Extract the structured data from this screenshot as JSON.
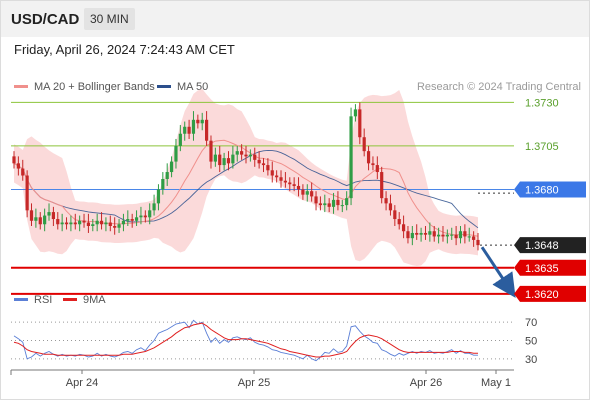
{
  "header": {
    "symbol": "USD/CAD",
    "interval": "30 MIN",
    "datetime": "Friday, April 26, 2024 7:24:43 AM CET"
  },
  "legend_main": [
    {
      "label": "MA 20 + Bollinger Bands",
      "color": "#f0908c"
    },
    {
      "label": "MA 50",
      "color": "#2c4f8c"
    }
  ],
  "research": "Research © 2024 Trading Central",
  "legend_rsi": [
    {
      "label": "RSI",
      "color": "#5b7fd6"
    },
    {
      "label": "9MA",
      "color": "#e02020"
    }
  ],
  "colors": {
    "up_candle": "#2f9d45",
    "down_candle": "#c62828",
    "band_fill": "#fbd6d6",
    "resistance": "#8cc43a",
    "support": "#e00000",
    "pivot": "#4a86e8",
    "last_price": "#222222",
    "arrow": "#2b5d9e"
  },
  "chart_data": {
    "type": "candlestick",
    "x_ticks": [
      "Apr 24",
      "Apr 25",
      "Apr 26",
      "May 1"
    ],
    "y_range": [
      1.3605,
      1.374
    ],
    "levels": [
      {
        "value": 1.373,
        "label": "1.3730",
        "kind": "resistance"
      },
      {
        "value": 1.3705,
        "label": "1.3705",
        "kind": "resistance"
      },
      {
        "value": 1.368,
        "label": "1.3680",
        "kind": "pivot"
      },
      {
        "value": 1.3648,
        "label": "1.3648",
        "kind": "last"
      },
      {
        "value": 1.3635,
        "label": "1.3635",
        "kind": "support"
      },
      {
        "value": 1.362,
        "label": "1.3620",
        "kind": "support"
      }
    ],
    "forecast_arrow": {
      "from": 1.3648,
      "to": 1.362
    },
    "close_path": [
      1.3695,
      1.3692,
      1.3688,
      1.3668,
      1.3662,
      1.3664,
      1.366,
      1.3665,
      1.3667,
      1.3663,
      1.366,
      1.3661,
      1.366,
      1.3661,
      1.366,
      1.3662,
      1.3661,
      1.3659,
      1.366,
      1.3662,
      1.366,
      1.3661,
      1.3659,
      1.3658,
      1.366,
      1.3662,
      1.3663,
      1.3662,
      1.3664,
      1.3665,
      1.3664,
      1.3668,
      1.3672,
      1.368,
      1.3686,
      1.369,
      1.3696,
      1.3705,
      1.3712,
      1.3716,
      1.3712,
      1.372,
      1.3718,
      1.372,
      1.3708,
      1.3696,
      1.37,
      1.3694,
      1.3698,
      1.3695,
      1.37,
      1.3702,
      1.37,
      1.3699,
      1.37,
      1.3697,
      1.3695,
      1.3694,
      1.3691,
      1.3688,
      1.3687,
      1.3685,
      1.3684,
      1.3683,
      1.3682,
      1.368,
      1.3677,
      1.3679,
      1.3676,
      1.3672,
      1.3671,
      1.3672,
      1.367,
      1.3674,
      1.3671,
      1.3671,
      1.3675,
      1.3722,
      1.3726,
      1.371,
      1.3702,
      1.3695,
      1.3694,
      1.369,
      1.3675,
      1.3672,
      1.3668,
      1.3663,
      1.366,
      1.3656,
      1.3652,
      1.3655,
      1.3654,
      1.3655,
      1.3654,
      1.3656,
      1.3653,
      1.3654,
      1.3653,
      1.3654,
      1.3654,
      1.3652,
      1.3656,
      1.3653,
      1.3653,
      1.3651,
      1.3648
    ],
    "rsi": {
      "y_ticks": [
        30,
        50,
        70
      ],
      "rsi_path": [
        55,
        52,
        48,
        30,
        32,
        36,
        33,
        36,
        38,
        35,
        33,
        35,
        33,
        34,
        33,
        35,
        34,
        32,
        33,
        36,
        33,
        35,
        33,
        32,
        34,
        37,
        38,
        36,
        40,
        42,
        39,
        45,
        50,
        58,
        60,
        62,
        65,
        68,
        69,
        70,
        64,
        72,
        68,
        70,
        58,
        48,
        53,
        47,
        51,
        48,
        53,
        54,
        52,
        51,
        53,
        48,
        46,
        45,
        43,
        40,
        39,
        37,
        36,
        35,
        34,
        32,
        30,
        34,
        30,
        28,
        32,
        37,
        36,
        41,
        37,
        38,
        44,
        65,
        66,
        60,
        55,
        52,
        48,
        47,
        40,
        38,
        35,
        33,
        36,
        34,
        36,
        38,
        36,
        38,
        37,
        39,
        36,
        37,
        36,
        38,
        40,
        36,
        39,
        36,
        36,
        34,
        34
      ],
      "ma_path": [
        48,
        47,
        44,
        40,
        38,
        37,
        36,
        35,
        35,
        35,
        34,
        34,
        34,
        34,
        34,
        34,
        34,
        34,
        34,
        34,
        34,
        34,
        34,
        34,
        34,
        35,
        35,
        35,
        36,
        37,
        38,
        40,
        42,
        45,
        48,
        51,
        54,
        58,
        61,
        64,
        65,
        67,
        68,
        69,
        66,
        62,
        59,
        56,
        53,
        51,
        51,
        51,
        52,
        52,
        51,
        50,
        49,
        48,
        47,
        45,
        43,
        41,
        40,
        38,
        37,
        36,
        35,
        34,
        33,
        32,
        32,
        33,
        33,
        34,
        35,
        36,
        38,
        44,
        49,
        53,
        55,
        56,
        55,
        54,
        52,
        49,
        46,
        43,
        40,
        38,
        37,
        37,
        37,
        37,
        37,
        37,
        37,
        37,
        37,
        37,
        38,
        38,
        38,
        37,
        37,
        36,
        36
      ]
    }
  }
}
